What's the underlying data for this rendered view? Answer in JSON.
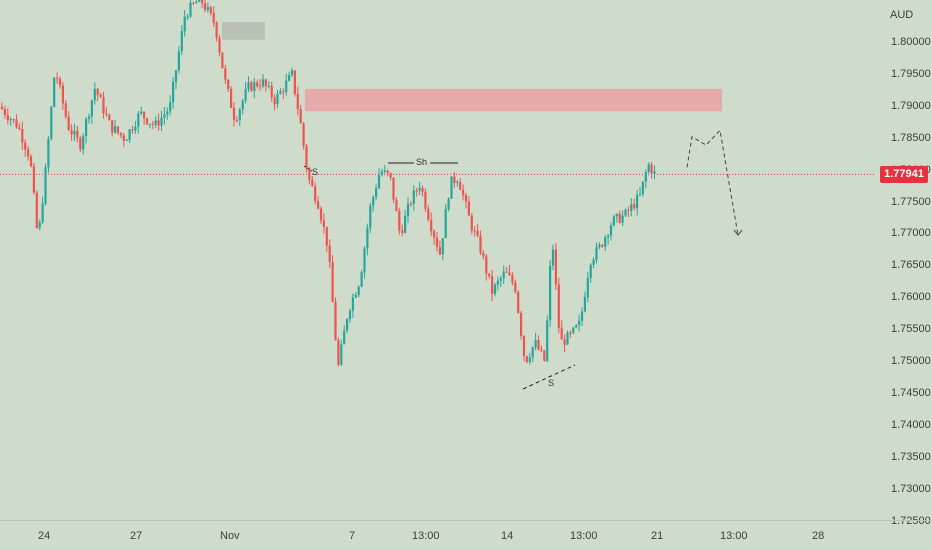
{
  "chart_data": {
    "type": "candlestick",
    "currency": "AUD",
    "current_price": "1.77941",
    "price_ticks": [
      "1.80000",
      "1.79500",
      "1.79000",
      "1.78500",
      "1.78000",
      "1.77500",
      "1.77000",
      "1.76500",
      "1.76000",
      "1.75500",
      "1.75000",
      "1.74500",
      "1.74000",
      "1.73500",
      "1.73000",
      "1.72500"
    ],
    "time_ticks": [
      "24",
      "27",
      "Nov",
      "7",
      "13:00",
      "14",
      "13:00",
      "21",
      "13:00",
      "28"
    ],
    "ylim": [
      1.725,
      1.805
    ],
    "zones": [
      {
        "kind": "supply",
        "color": "#e8a5a5",
        "x_start": "Nov 2",
        "x_end": "Nov 24",
        "price_low": 1.7893,
        "price_high": 1.7928
      },
      {
        "kind": "block",
        "color": "#b7bfb5",
        "x_start": "Nov 1",
        "x_end": "Nov 1",
        "price_low": 1.8005,
        "price_high": 1.8033
      }
    ],
    "annotations": [
      {
        "text": "Sh",
        "price": 1.7813
      },
      {
        "text": "S",
        "price": 1.7788
      },
      {
        "text": "S",
        "price": 1.7454
      }
    ],
    "up_color": "#26a69a",
    "down_color": "#ef5350",
    "projection": {
      "style": "dashed",
      "direction": "down",
      "points": [
        1.7805,
        1.7853,
        1.784,
        1.7863,
        1.7699
      ]
    }
  }
}
